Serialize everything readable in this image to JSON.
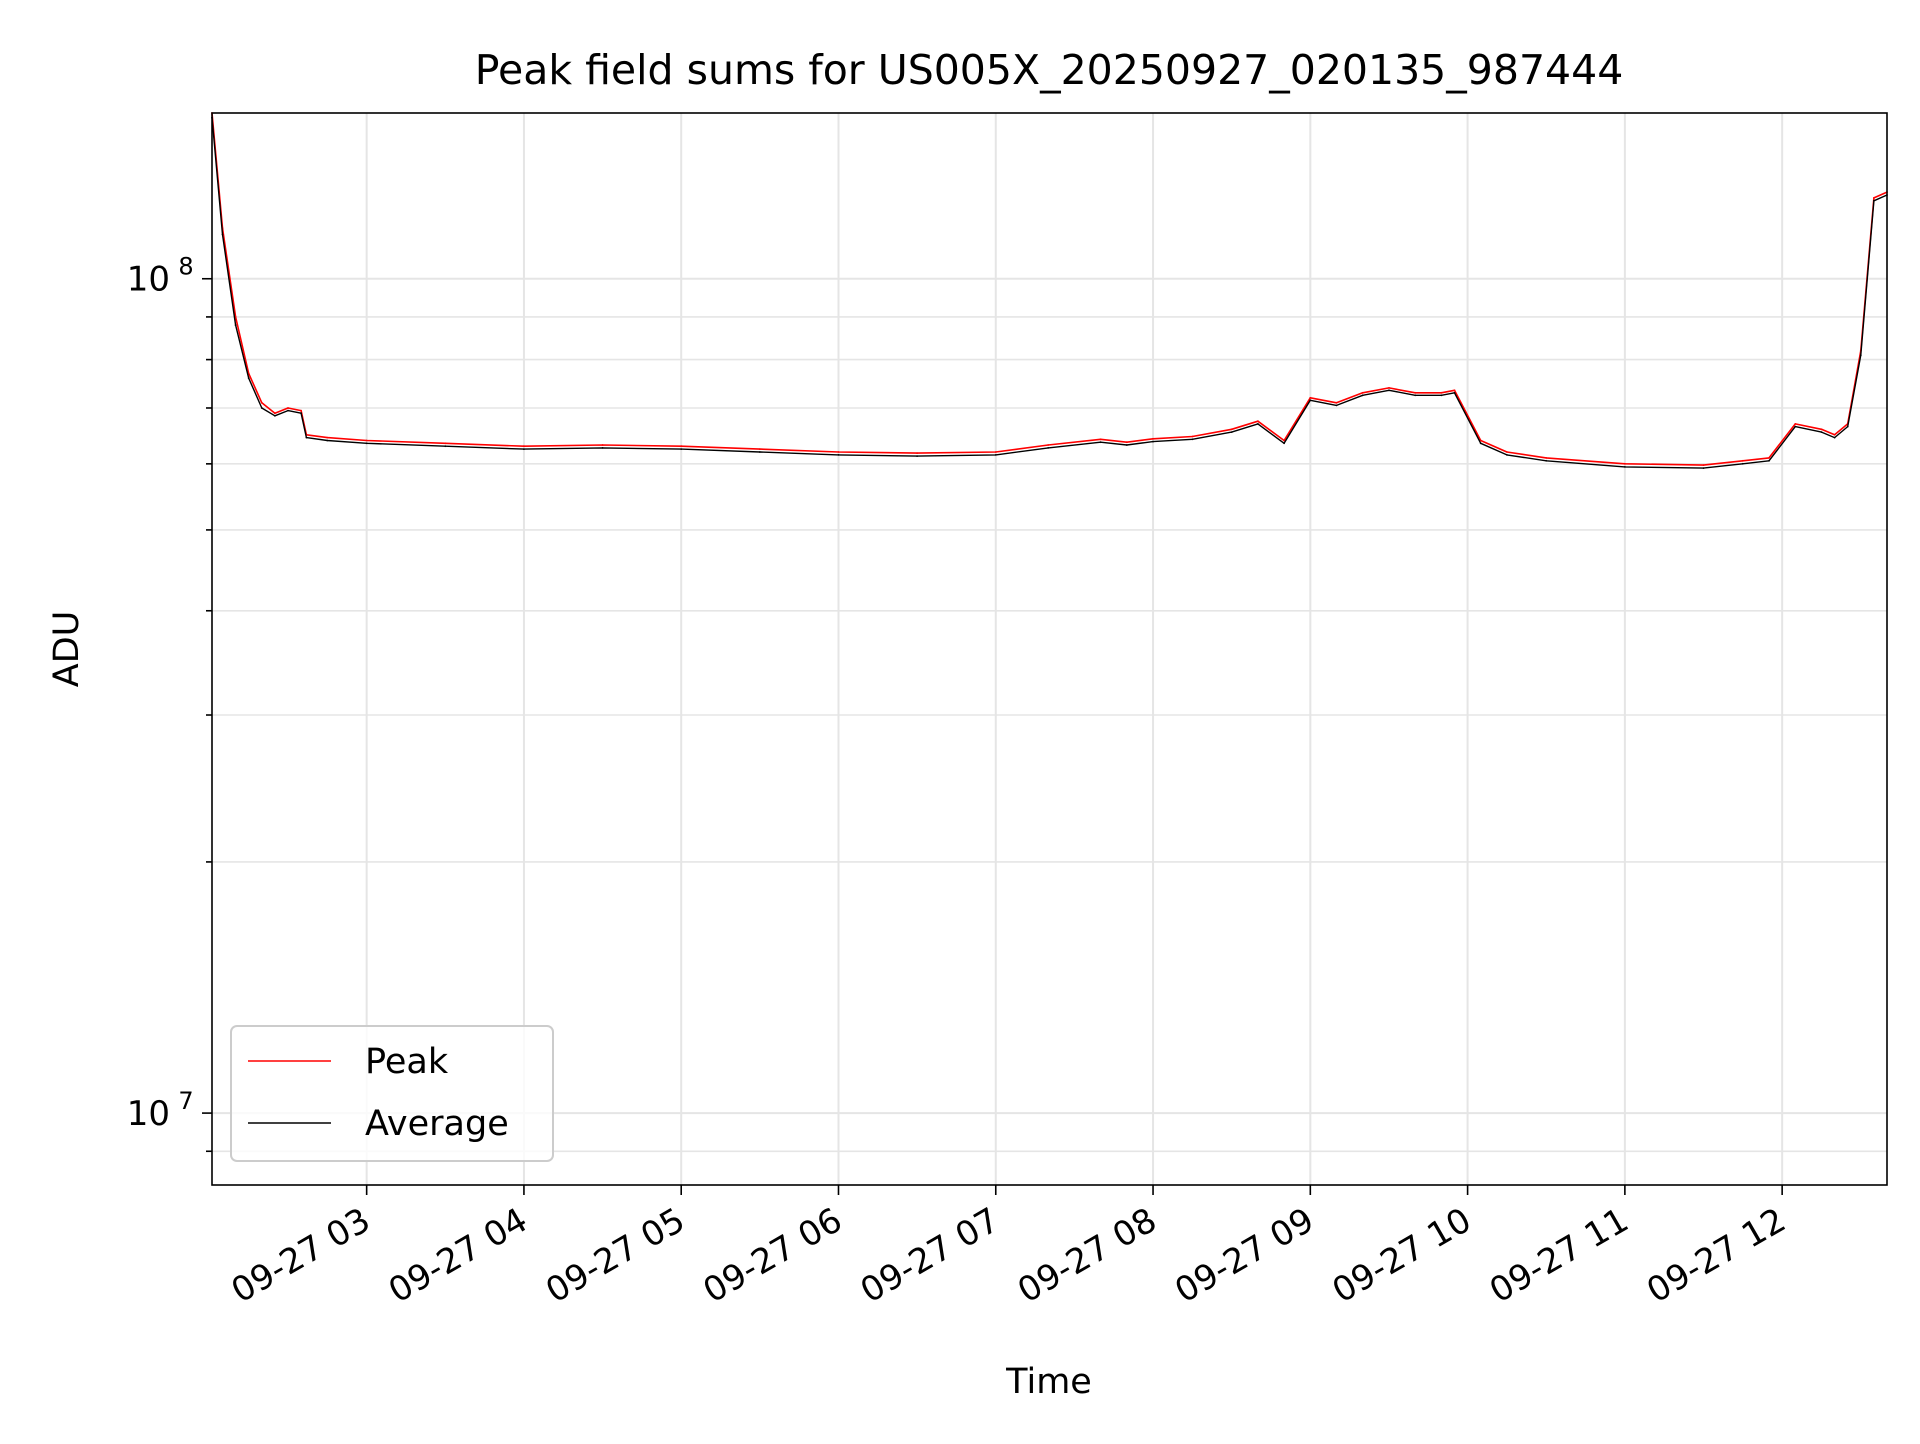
{
  "chart_data": {
    "type": "line",
    "title": "Peak field sums for US005X_20250927_020135_987444",
    "xlabel": "Time",
    "ylabel": "ADU",
    "y_scale": "log",
    "ylim": [
      8200000,
      158000000
    ],
    "xlim": [
      "09-27 02:01",
      "09-27 12:40"
    ],
    "grid": true,
    "legend_position": "lower-left",
    "x_ticks": [
      "09-27 03",
      "09-27 04",
      "09-27 05",
      "09-27 06",
      "09-27 07",
      "09-27 08",
      "09-27 09",
      "09-27 10",
      "09-27 11",
      "09-27 12"
    ],
    "y_major_ticks": [
      {
        "value": 10000000,
        "base": "10",
        "exp": "7"
      },
      {
        "value": 100000000,
        "base": "10",
        "exp": "8"
      }
    ],
    "series": [
      {
        "name": "Peak",
        "color": "#ff0000",
        "x": [
          "09-27 02:01",
          "09-27 02:05",
          "09-27 02:10",
          "09-27 02:15",
          "09-27 02:20",
          "09-27 02:25",
          "09-27 02:30",
          "09-27 02:35",
          "09-27 02:37",
          "09-27 02:45",
          "09-27 03:00",
          "09-27 03:30",
          "09-27 04:00",
          "09-27 04:30",
          "09-27 05:00",
          "09-27 05:30",
          "09-27 06:00",
          "09-27 06:30",
          "09-27 07:00",
          "09-27 07:20",
          "09-27 07:40",
          "09-27 07:50",
          "09-27 08:00",
          "09-27 08:15",
          "09-27 08:30",
          "09-27 08:40",
          "09-27 08:50",
          "09-27 09:00",
          "09-27 09:10",
          "09-27 09:20",
          "09-27 09:30",
          "09-27 09:40",
          "09-27 09:50",
          "09-27 09:55",
          "09-27 10:05",
          "09-27 10:15",
          "09-27 10:30",
          "09-27 11:00",
          "09-27 11:30",
          "09-27 11:45",
          "09-27 11:55",
          "09-27 12:05",
          "09-27 12:15",
          "09-27 12:20",
          "09-27 12:25",
          "09-27 12:30",
          "09-27 12:35",
          "09-27 12:40"
        ],
        "values": [
          158000000,
          115000000,
          90000000,
          77000000,
          71000000,
          69000000,
          70000000,
          69500000,
          65000000,
          64500000,
          64000000,
          63500000,
          63000000,
          63200000,
          63000000,
          62500000,
          62000000,
          61800000,
          62000000,
          63200000,
          64200000,
          63700000,
          64300000,
          64700000,
          66000000,
          67500000,
          64000000,
          72000000,
          71000000,
          73000000,
          74000000,
          73000000,
          73000000,
          73500000,
          64000000,
          62000000,
          61000000,
          60000000,
          59800000,
          60500000,
          61000000,
          67000000,
          66000000,
          65000000,
          67000000,
          82000000,
          125000000,
          127000000
        ]
      },
      {
        "name": "Average",
        "color": "#000000",
        "x": [
          "09-27 02:01",
          "09-27 02:05",
          "09-27 02:10",
          "09-27 02:15",
          "09-27 02:20",
          "09-27 02:25",
          "09-27 02:30",
          "09-27 02:35",
          "09-27 02:37",
          "09-27 02:45",
          "09-27 03:00",
          "09-27 03:30",
          "09-27 04:00",
          "09-27 04:30",
          "09-27 05:00",
          "09-27 05:30",
          "09-27 06:00",
          "09-27 06:30",
          "09-27 07:00",
          "09-27 07:20",
          "09-27 07:40",
          "09-27 07:50",
          "09-27 08:00",
          "09-27 08:15",
          "09-27 08:30",
          "09-27 08:40",
          "09-27 08:50",
          "09-27 09:00",
          "09-27 09:10",
          "09-27 09:20",
          "09-27 09:30",
          "09-27 09:40",
          "09-27 09:50",
          "09-27 09:55",
          "09-27 10:05",
          "09-27 10:15",
          "09-27 10:30",
          "09-27 11:00",
          "09-27 11:30",
          "09-27 11:45",
          "09-27 11:55",
          "09-27 12:05",
          "09-27 12:15",
          "09-27 12:20",
          "09-27 12:25",
          "09-27 12:30",
          "09-27 12:35",
          "09-27 12:40"
        ],
        "values": [
          156000000,
          113000000,
          88000000,
          76000000,
          70000000,
          68500000,
          69500000,
          69000000,
          64500000,
          64000000,
          63500000,
          63000000,
          62500000,
          62700000,
          62500000,
          62000000,
          61500000,
          61300000,
          61500000,
          62700000,
          63700000,
          63200000,
          63800000,
          64200000,
          65500000,
          67000000,
          63500000,
          71500000,
          70500000,
          72500000,
          73500000,
          72500000,
          72500000,
          73000000,
          63500000,
          61500000,
          60500000,
          59500000,
          59300000,
          60000000,
          60500000,
          66500000,
          65500000,
          64500000,
          66500000,
          81000000,
          124000000,
          126000000
        ]
      }
    ]
  }
}
